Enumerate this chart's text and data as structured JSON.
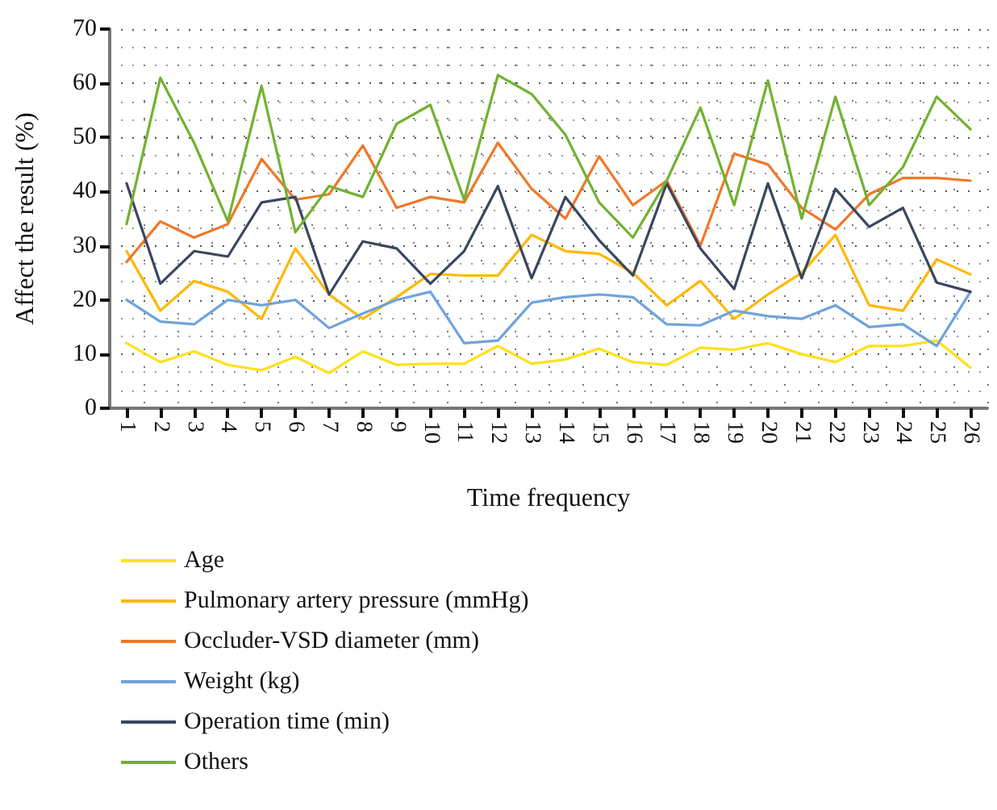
{
  "chart_data": {
    "type": "line",
    "xlabel": "Time frequency",
    "ylabel": "Affect the result (%)",
    "categories": [
      "1",
      "2",
      "3",
      "4",
      "5",
      "6",
      "7",
      "8",
      "9",
      "10",
      "11",
      "12",
      "13",
      "14",
      "15",
      "16",
      "17",
      "18",
      "19",
      "20",
      "21",
      "22",
      "23",
      "24",
      "25",
      "26"
    ],
    "series": [
      {
        "name": "Age",
        "color": "#ffe01a",
        "values": [
          12,
          8.5,
          10.5,
          8,
          7,
          9.5,
          6.5,
          10.5,
          8,
          8.2,
          8.2,
          11.5,
          8.2,
          9,
          11,
          8.5,
          8,
          11.2,
          10.8,
          12,
          10,
          8.5,
          11.5,
          11.5,
          12.5,
          7.5
        ]
      },
      {
        "name": "Pulmonary artery pressure (mmHg)",
        "color": "#ffb800",
        "values": [
          29,
          18,
          23.5,
          21.5,
          16.5,
          29.5,
          21,
          16.5,
          20.5,
          24.8,
          24.5,
          24.5,
          32,
          29,
          28.5,
          25,
          19,
          23.5,
          16.5,
          21,
          25,
          32,
          19,
          18,
          27.5,
          24.7
        ]
      },
      {
        "name": "Occluder-VSD diameter (mm)",
        "color": "#f07828",
        "values": [
          27,
          34.5,
          31.5,
          34,
          46,
          38.5,
          39.5,
          48.5,
          37,
          39,
          38,
          49,
          40.5,
          35,
          46.5,
          37.5,
          42,
          30,
          47,
          45,
          37,
          33,
          39.5,
          42.5,
          42.5,
          42
        ]
      },
      {
        "name": "Weight (kg)",
        "color": "#6fa3dc",
        "values": [
          20,
          16,
          15.5,
          20,
          19,
          20,
          14.8,
          17.5,
          20,
          21.5,
          12,
          12.5,
          19.5,
          20.5,
          21,
          20.5,
          15.5,
          15.3,
          18,
          17,
          16.5,
          19,
          15,
          15.5,
          11.5,
          21.5
        ]
      },
      {
        "name": "Operation time (min)",
        "color": "#3b4660",
        "values": [
          41.5,
          23,
          29,
          28,
          38,
          39,
          21,
          30.8,
          29.5,
          23,
          29,
          41,
          24,
          39,
          31,
          24.5,
          41.5,
          29.5,
          22,
          41.5,
          24,
          40.5,
          33.5,
          37,
          23.2,
          21.5
        ]
      },
      {
        "name": "Others",
        "color": "#72b230",
        "values": [
          34,
          61,
          49,
          34.5,
          59.5,
          32.5,
          41,
          39,
          52.5,
          56,
          38.5,
          61.5,
          58,
          50.5,
          38,
          31.5,
          42,
          55.5,
          37.5,
          60.5,
          35,
          57.5,
          37.5,
          44.5,
          57.5,
          51.5
        ]
      }
    ],
    "ylim": [
      0,
      70
    ],
    "yticks": [
      0,
      10,
      20,
      30,
      40,
      50,
      60,
      70
    ],
    "grid": true,
    "legend": "bottom left",
    "marker": "none",
    "line_style": "solid"
  }
}
